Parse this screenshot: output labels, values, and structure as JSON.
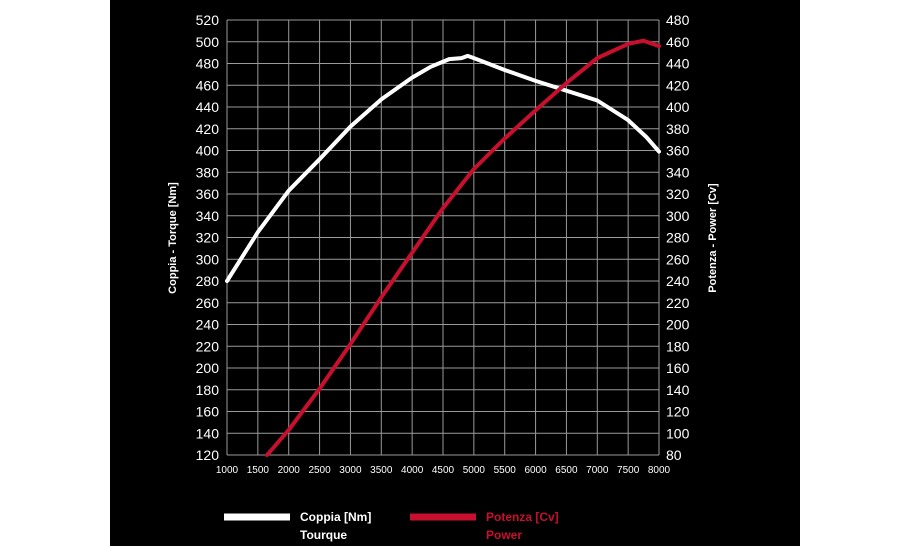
{
  "chart_data": {
    "type": "line",
    "x_ticks": [
      1000,
      1500,
      2000,
      2500,
      3000,
      3500,
      4000,
      4500,
      5000,
      5500,
      6000,
      6500,
      7000,
      7500,
      8000
    ],
    "xlim": [
      1000,
      8000
    ],
    "y_left": {
      "label": "Coppia - Torque [Nm]",
      "ticks": [
        120,
        140,
        160,
        180,
        200,
        220,
        240,
        260,
        280,
        300,
        320,
        340,
        360,
        380,
        400,
        420,
        440,
        460,
        480,
        500,
        520
      ],
      "range": [
        120,
        520
      ]
    },
    "y_right": {
      "label": "Potenza - Power [Cv]",
      "ticks": [
        80,
        100,
        120,
        140,
        160,
        180,
        200,
        220,
        240,
        260,
        280,
        300,
        320,
        340,
        360,
        380,
        400,
        420,
        440,
        460,
        480
      ],
      "range": [
        80,
        480
      ]
    },
    "grid": true,
    "series": [
      {
        "name": "Coppia [Nm]",
        "name_line2": "Tourque",
        "axis": "left",
        "color": "#ffffff",
        "x": [
          1000,
          1500,
          2000,
          2500,
          3000,
          3500,
          4000,
          4300,
          4600,
          4800,
          4900,
          5000,
          5500,
          6000,
          6500,
          7000,
          7500,
          7800,
          8000
        ],
        "y": [
          280,
          325,
          363,
          392,
          422,
          447,
          467,
          477,
          484,
          485,
          487,
          485,
          474,
          464,
          455,
          446,
          428,
          412,
          399
        ]
      },
      {
        "name": "Potenza [Cv]",
        "name_line2": "Power",
        "axis": "right",
        "color": "#c8102e",
        "x": [
          1650,
          2000,
          2500,
          3000,
          3500,
          4000,
          4500,
          5000,
          5500,
          6000,
          6500,
          7000,
          7500,
          7750,
          8000
        ],
        "y": [
          80,
          103,
          141,
          182,
          225,
          266,
          307,
          343,
          371,
          397,
          422,
          445,
          458,
          461,
          456
        ]
      }
    ],
    "legend": {
      "placement": "bottom"
    }
  }
}
